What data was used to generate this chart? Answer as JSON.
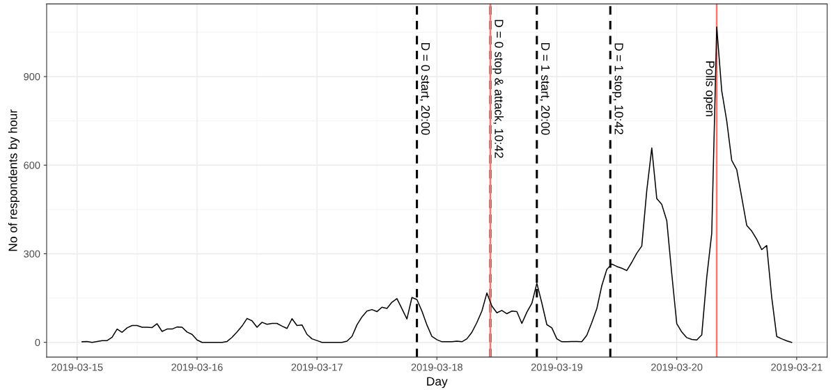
{
  "chart_data": {
    "type": "line",
    "xlabel": "Day",
    "ylabel": "No of respondents by hour",
    "x": [
      "2019-03-15T01:00",
      "2019-03-15T02:00",
      "2019-03-15T03:00",
      "2019-03-15T04:00",
      "2019-03-15T05:00",
      "2019-03-15T06:00",
      "2019-03-15T07:00",
      "2019-03-15T08:00",
      "2019-03-15T09:00",
      "2019-03-15T10:00",
      "2019-03-15T11:00",
      "2019-03-15T12:00",
      "2019-03-15T13:00",
      "2019-03-15T14:00",
      "2019-03-15T15:00",
      "2019-03-15T16:00",
      "2019-03-15T17:00",
      "2019-03-15T18:00",
      "2019-03-15T19:00",
      "2019-03-15T20:00",
      "2019-03-15T21:00",
      "2019-03-15T22:00",
      "2019-03-15T23:00",
      "2019-03-16T00:00",
      "2019-03-16T01:00",
      "2019-03-16T02:00",
      "2019-03-16T03:00",
      "2019-03-16T04:00",
      "2019-03-16T05:00",
      "2019-03-16T06:00",
      "2019-03-16T07:00",
      "2019-03-16T08:00",
      "2019-03-16T09:00",
      "2019-03-16T10:00",
      "2019-03-16T11:00",
      "2019-03-16T12:00",
      "2019-03-16T13:00",
      "2019-03-16T14:00",
      "2019-03-16T15:00",
      "2019-03-16T16:00",
      "2019-03-16T17:00",
      "2019-03-16T18:00",
      "2019-03-16T19:00",
      "2019-03-16T20:00",
      "2019-03-16T21:00",
      "2019-03-16T22:00",
      "2019-03-16T23:00",
      "2019-03-17T00:00",
      "2019-03-17T01:00",
      "2019-03-17T02:00",
      "2019-03-17T03:00",
      "2019-03-17T04:00",
      "2019-03-17T05:00",
      "2019-03-17T06:00",
      "2019-03-17T07:00",
      "2019-03-17T08:00",
      "2019-03-17T09:00",
      "2019-03-17T10:00",
      "2019-03-17T11:00",
      "2019-03-17T12:00",
      "2019-03-17T13:00",
      "2019-03-17T14:00",
      "2019-03-17T15:00",
      "2019-03-17T16:00",
      "2019-03-17T17:00",
      "2019-03-17T18:00",
      "2019-03-17T19:00",
      "2019-03-17T20:00",
      "2019-03-17T21:00",
      "2019-03-17T22:00",
      "2019-03-17T23:00",
      "2019-03-18T00:00",
      "2019-03-18T01:00",
      "2019-03-18T02:00",
      "2019-03-18T03:00",
      "2019-03-18T04:00",
      "2019-03-18T05:00",
      "2019-03-18T06:00",
      "2019-03-18T07:00",
      "2019-03-18T08:00",
      "2019-03-18T09:00",
      "2019-03-18T10:00",
      "2019-03-18T11:00",
      "2019-03-18T12:00",
      "2019-03-18T13:00",
      "2019-03-18T14:00",
      "2019-03-18T15:00",
      "2019-03-18T16:00",
      "2019-03-18T17:00",
      "2019-03-18T18:00",
      "2019-03-18T19:00",
      "2019-03-18T20:00",
      "2019-03-18T21:00",
      "2019-03-18T22:00",
      "2019-03-18T23:00",
      "2019-03-19T00:00",
      "2019-03-19T01:00",
      "2019-03-19T02:00",
      "2019-03-19T03:00",
      "2019-03-19T04:00",
      "2019-03-19T05:00",
      "2019-03-19T06:00",
      "2019-03-19T07:00",
      "2019-03-19T08:00",
      "2019-03-19T09:00",
      "2019-03-19T10:00",
      "2019-03-19T11:00",
      "2019-03-19T12:00",
      "2019-03-19T13:00",
      "2019-03-19T14:00",
      "2019-03-19T15:00",
      "2019-03-19T16:00",
      "2019-03-19T17:00",
      "2019-03-19T18:00",
      "2019-03-19T19:00",
      "2019-03-19T20:00",
      "2019-03-19T21:00",
      "2019-03-19T22:00",
      "2019-03-19T23:00",
      "2019-03-20T00:00",
      "2019-03-20T01:00",
      "2019-03-20T02:00",
      "2019-03-20T03:00",
      "2019-03-20T04:00",
      "2019-03-20T05:00",
      "2019-03-20T06:00",
      "2019-03-20T07:00",
      "2019-03-20T08:00",
      "2019-03-20T09:00",
      "2019-03-20T10:00",
      "2019-03-20T11:00",
      "2019-03-20T12:00",
      "2019-03-20T13:00",
      "2019-03-20T14:00",
      "2019-03-20T15:00",
      "2019-03-20T16:00",
      "2019-03-20T17:00",
      "2019-03-20T18:00",
      "2019-03-20T19:00",
      "2019-03-20T20:00",
      "2019-03-20T21:00",
      "2019-03-20T22:00",
      "2019-03-20T23:00"
    ],
    "series": [
      {
        "color": "#000000",
        "values": [
          2,
          3,
          0,
          3,
          6,
          6,
          17,
          45,
          34,
          49,
          57,
          57,
          51,
          51,
          50,
          63,
          37,
          45,
          45,
          52,
          51,
          35,
          27,
          8,
          0,
          0,
          0,
          0,
          0,
          3,
          17,
          35,
          55,
          81,
          73,
          51,
          68,
          61,
          64,
          64,
          55,
          47,
          80,
          57,
          59,
          27,
          12,
          6,
          0,
          0,
          0,
          0,
          0,
          4,
          20,
          59,
          86,
          106,
          111,
          104,
          119,
          115,
          136,
          148,
          114,
          79,
          152,
          145,
          106,
          59,
          20,
          9,
          2,
          2,
          2,
          4,
          2,
          12,
          34,
          67,
          106,
          167,
          123,
          100,
          108,
          97,
          106,
          104,
          64,
          102,
          132,
          200,
          133,
          60,
          49,
          12,
          2,
          2,
          3,
          3,
          2,
          24,
          67,
          114,
          192,
          247,
          265,
          257,
          251,
          243,
          271,
          302,
          326,
          514,
          658,
          487,
          467,
          412,
          232,
          63,
          35,
          16,
          10,
          8,
          25,
          220,
          369,
          1068,
          852,
          750,
          616,
          585,
          491,
          396,
          377,
          349,
          314,
          328,
          153,
          20,
          12,
          5,
          0
        ]
      }
    ],
    "xlim": [
      "2019-03-14T17:54",
      "2019-03-21T06:06"
    ],
    "xticks": [
      "2019-03-15",
      "2019-03-16",
      "2019-03-17",
      "2019-03-18",
      "2019-03-19",
      "2019-03-20",
      "2019-03-21"
    ],
    "ylim": [
      -50,
      1146
    ],
    "yticks": [
      0,
      300,
      600,
      900
    ],
    "grid": true,
    "marker": "none",
    "line_style": "solid",
    "ref_lines": [
      {
        "axis": "x",
        "value": "2019-03-17T20:00",
        "label": "D = 0 start, 20:00",
        "color": "#000000",
        "line_style": "dashed"
      },
      {
        "axis": "x",
        "value": "2019-03-18T10:42",
        "label": "D = 0 stop & attack, 10:42",
        "color": "#000000",
        "line_style": "dashed"
      },
      {
        "axis": "x",
        "value": "2019-03-18T10:42",
        "color": "#f8766d",
        "line_style": "solid"
      },
      {
        "axis": "x",
        "value": "2019-03-18T20:00",
        "label": "D = 1 start, 20:00",
        "color": "#000000",
        "line_style": "dashed"
      },
      {
        "axis": "x",
        "value": "2019-03-19T10:42",
        "label": "D = 1 stop, 10:42",
        "color": "#000000",
        "line_style": "dashed"
      },
      {
        "axis": "x",
        "value": "2019-03-20T08:00",
        "label": "Polls open",
        "color": "#f8766d",
        "line_style": "solid"
      }
    ]
  }
}
